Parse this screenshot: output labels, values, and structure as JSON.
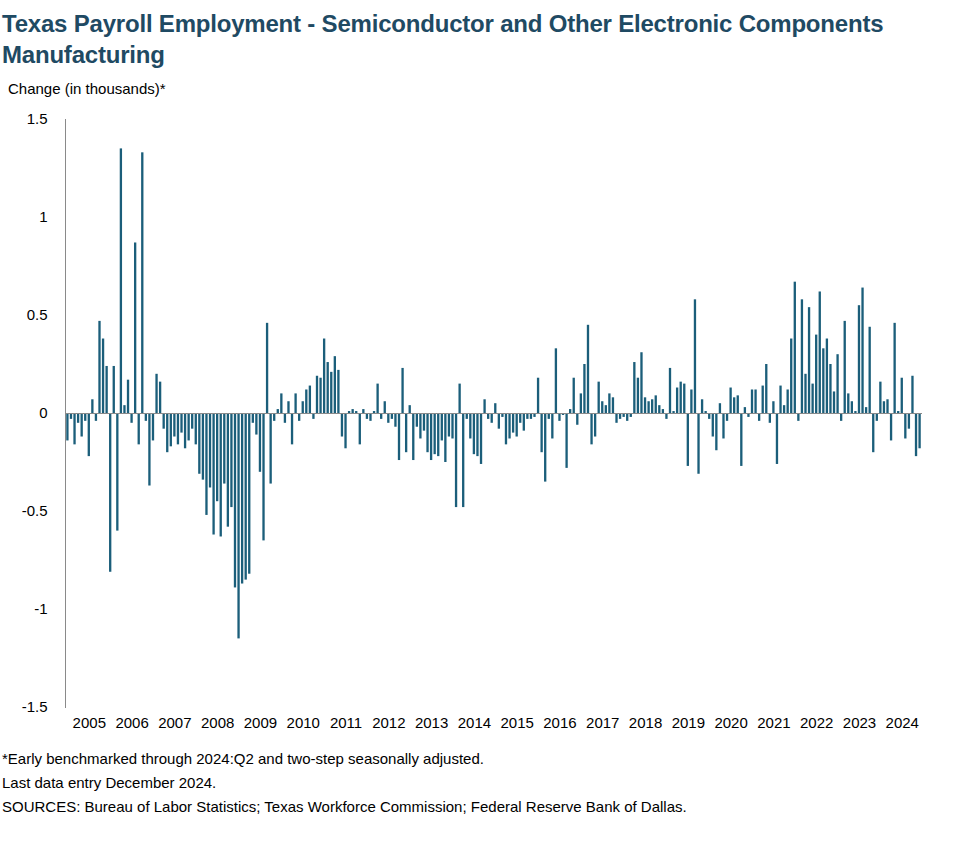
{
  "chart_data": {
    "type": "bar",
    "title": "Texas Payroll Employment - Semiconductor and Other Electronic Components Manufacturing",
    "y_label": "Change (in thousands)*",
    "notes": [
      "*Early benchmarked through 2024:Q2 and two-step seasonally adjusted.",
      "Last data entry December 2024.",
      "SOURCES: Bureau of Labor Statistics; Texas Workforce Commission; Federal Reserve Bank of Dallas."
    ],
    "color": "#1b5e7a",
    "ylim": [
      -1.5,
      1.5
    ],
    "yticks": [
      -1.5,
      -1,
      -0.5,
      0,
      0.5,
      1,
      1.5
    ],
    "grid": false,
    "categories": [
      null,
      null,
      null,
      null,
      null,
      null,
      "2005",
      null,
      null,
      null,
      null,
      null,
      null,
      null,
      null,
      null,
      null,
      null,
      "2006",
      null,
      null,
      null,
      null,
      null,
      null,
      null,
      null,
      null,
      null,
      null,
      "2007",
      null,
      null,
      null,
      null,
      null,
      null,
      null,
      null,
      null,
      null,
      null,
      "2008",
      null,
      null,
      null,
      null,
      null,
      null,
      null,
      null,
      null,
      null,
      null,
      "2009",
      null,
      null,
      null,
      null,
      null,
      null,
      null,
      null,
      null,
      null,
      null,
      "2010",
      null,
      null,
      null,
      null,
      null,
      null,
      null,
      null,
      null,
      null,
      null,
      "2011",
      null,
      null,
      null,
      null,
      null,
      null,
      null,
      null,
      null,
      null,
      null,
      "2012",
      null,
      null,
      null,
      null,
      null,
      null,
      null,
      null,
      null,
      null,
      null,
      "2013",
      null,
      null,
      null,
      null,
      null,
      null,
      null,
      null,
      null,
      null,
      null,
      "2014",
      null,
      null,
      null,
      null,
      null,
      null,
      null,
      null,
      null,
      null,
      null,
      "2015",
      null,
      null,
      null,
      null,
      null,
      null,
      null,
      null,
      null,
      null,
      null,
      "2016",
      null,
      null,
      null,
      null,
      null,
      null,
      null,
      null,
      null,
      null,
      null,
      "2017",
      null,
      null,
      null,
      null,
      null,
      null,
      null,
      null,
      null,
      null,
      null,
      "2018",
      null,
      null,
      null,
      null,
      null,
      null,
      null,
      null,
      null,
      null,
      null,
      "2019",
      null,
      null,
      null,
      null,
      null,
      null,
      null,
      null,
      null,
      null,
      null,
      "2020",
      null,
      null,
      null,
      null,
      null,
      null,
      null,
      null,
      null,
      null,
      null,
      "2021",
      null,
      null,
      null,
      null,
      null,
      null,
      null,
      null,
      null,
      null,
      null,
      "2022",
      null,
      null,
      null,
      null,
      null,
      null,
      null,
      null,
      null,
      null,
      null,
      "2023",
      null,
      null,
      null,
      null,
      null,
      null,
      null,
      null,
      null,
      null,
      null,
      "2024",
      null,
      null,
      null,
      null,
      null
    ],
    "values": [
      -0.14,
      -0.03,
      -0.16,
      -0.05,
      -0.12,
      -0.04,
      -0.22,
      0.07,
      -0.04,
      0.47,
      0.38,
      0.24,
      -0.81,
      0.24,
      -0.6,
      1.35,
      0.04,
      0.17,
      -0.05,
      0.87,
      -0.16,
      1.33,
      -0.04,
      -0.37,
      -0.14,
      0.2,
      0.16,
      -0.08,
      -0.2,
      -0.17,
      -0.12,
      -0.16,
      -0.1,
      -0.18,
      -0.14,
      -0.08,
      -0.16,
      -0.31,
      -0.34,
      -0.52,
      -0.38,
      -0.62,
      -0.45,
      -0.63,
      -0.36,
      -0.58,
      -0.48,
      -0.89,
      -1.15,
      -0.87,
      -0.85,
      -0.82,
      -0.05,
      -0.11,
      -0.3,
      -0.65,
      0.46,
      -0.36,
      -0.04,
      0.02,
      0.1,
      -0.05,
      0.06,
      -0.16,
      0.1,
      -0.04,
      0.06,
      0.12,
      0.14,
      -0.03,
      0.19,
      0.18,
      0.38,
      0.26,
      0.21,
      0.29,
      0.22,
      -0.12,
      -0.18,
      0.01,
      0.02,
      0.01,
      -0.16,
      0.02,
      -0.03,
      -0.04,
      0.01,
      0.15,
      -0.03,
      0.06,
      -0.05,
      -0.03,
      -0.07,
      -0.24,
      0.23,
      -0.2,
      0.04,
      -0.24,
      -0.07,
      -0.13,
      -0.09,
      -0.2,
      -0.24,
      -0.21,
      -0.22,
      -0.14,
      -0.25,
      -0.12,
      -0.13,
      -0.48,
      0.15,
      -0.48,
      -0.03,
      -0.13,
      -0.21,
      -0.22,
      -0.26,
      0.07,
      -0.03,
      -0.05,
      0.05,
      -0.08,
      -0.02,
      -0.16,
      -0.13,
      -0.1,
      -0.12,
      -0.05,
      -0.09,
      -0.03,
      -0.03,
      -0.02,
      0.18,
      -0.2,
      -0.35,
      -0.03,
      -0.13,
      0.33,
      -0.04,
      -0.01,
      -0.28,
      0.02,
      0.18,
      -0.06,
      0.1,
      0.25,
      0.45,
      -0.16,
      -0.12,
      0.16,
      0.06,
      0.04,
      0.1,
      0.08,
      -0.05,
      -0.03,
      -0.02,
      -0.04,
      -0.02,
      0.26,
      0.18,
      0.31,
      0.08,
      0.06,
      0.07,
      0.09,
      0.04,
      0.02,
      -0.03,
      0.23,
      0.01,
      0.13,
      0.16,
      0.15,
      -0.27,
      0.12,
      0.58,
      -0.31,
      0.07,
      0.01,
      -0.03,
      -0.12,
      -0.19,
      0.05,
      -0.13,
      -0.04,
      0.13,
      0.08,
      0.09,
      -0.27,
      0.03,
      -0.02,
      0.12,
      0.12,
      -0.04,
      0.14,
      0.25,
      -0.05,
      0.06,
      -0.26,
      0.14,
      0.04,
      0.12,
      0.38,
      0.67,
      -0.04,
      0.58,
      0.2,
      0.54,
      0.15,
      0.4,
      0.62,
      0.33,
      0.38,
      0.25,
      0.11,
      0.3,
      -0.04,
      0.47,
      0.1,
      0.06,
      0.01,
      0.55,
      0.64,
      0.03,
      0.44,
      -0.2,
      -0.04,
      0.16,
      0.06,
      0.07,
      -0.14,
      0.46,
      0.01,
      0.18,
      -0.13,
      -0.08,
      0.19,
      -0.22,
      -0.18
    ]
  }
}
